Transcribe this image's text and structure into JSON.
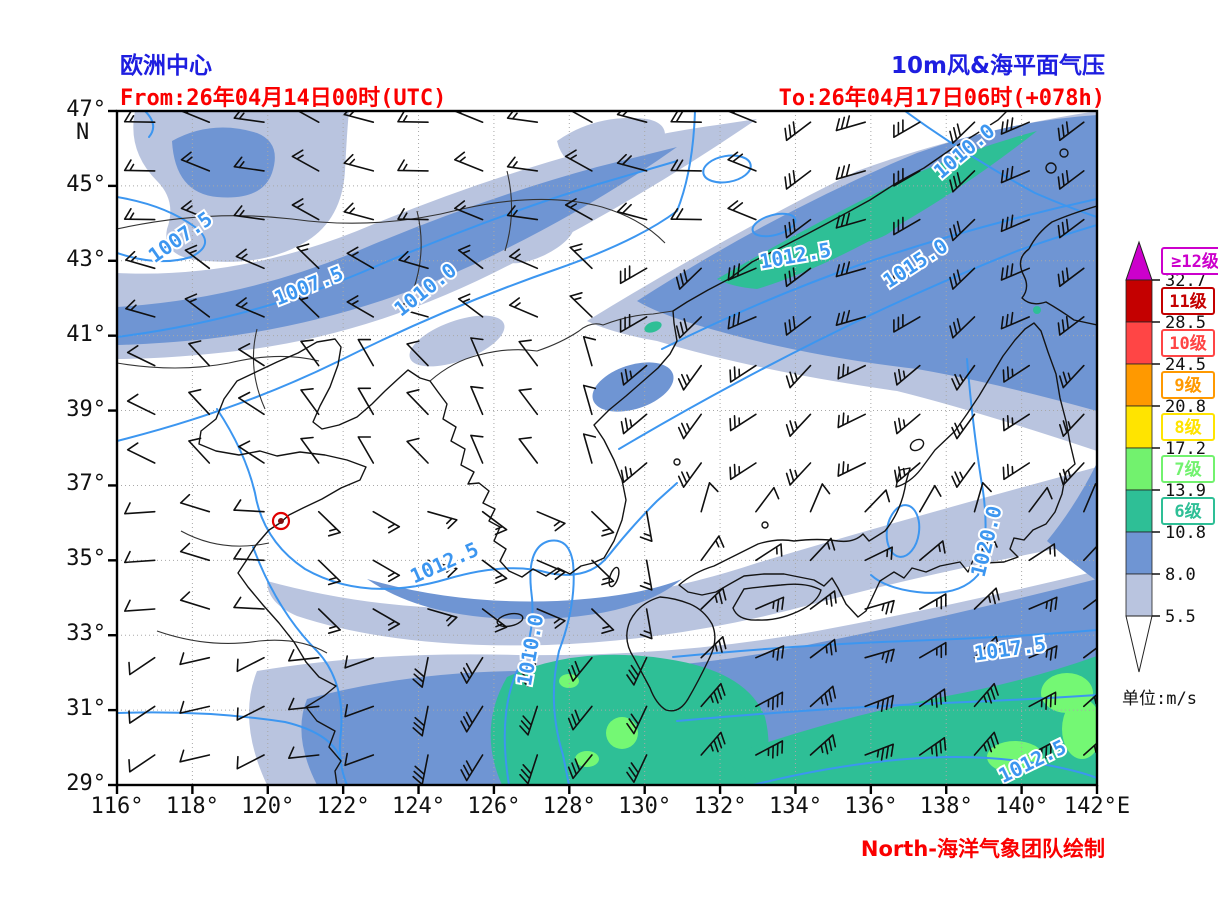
{
  "header": {
    "model": "欧洲中心",
    "product": "10m风&海平面气压",
    "from": "From:26年04月14日00时(UTC)",
    "to": "To:26年04月17日06时(+078h)"
  },
  "credit": "North-海洋气象团队绘制",
  "colors": {
    "title_blue": "#1e1ee0",
    "warn_red": "#fa0000",
    "contour_blue": "#3c96f0",
    "grid_gray": "#a8a8a8",
    "coast_black": "#141414",
    "marker_red": "#e00000",
    "fill_light_blue": "#b9c4df",
    "fill_blue": "#6f95d3",
    "fill_teal": "#2ebf96",
    "fill_light_green": "#74f874"
  },
  "map": {
    "lon_min": 116,
    "lon_max": 142,
    "lat_min": 29,
    "lat_max": 47,
    "lat_ticks": [
      47,
      45,
      43,
      41,
      39,
      37,
      35,
      33,
      31,
      29
    ],
    "lon_ticks": [
      116,
      118,
      120,
      122,
      124,
      126,
      128,
      130,
      132,
      134,
      136,
      138,
      140,
      142
    ],
    "deg_suffix": "°",
    "lat_hemisphere": "N",
    "lon_hemisphere": "E",
    "grid_step_deg": 2
  },
  "contour_labels": [
    {
      "text": "1007.5",
      "lon": 117.7,
      "lat": 43.6,
      "rot": -35
    },
    {
      "text": "1007.5",
      "lon": 121.1,
      "lat": 42.3,
      "rot": -22
    },
    {
      "text": "1010.0",
      "lon": 124.2,
      "lat": 42.2,
      "rot": -38
    },
    {
      "text": "1010.0",
      "lon": 138.5,
      "lat": 45.9,
      "rot": -40
    },
    {
      "text": "1012.5",
      "lon": 134.0,
      "lat": 43.1,
      "rot": -10
    },
    {
      "text": "1015.0",
      "lon": 137.2,
      "lat": 42.9,
      "rot": -33
    },
    {
      "text": "1012.5",
      "lon": 124.7,
      "lat": 34.9,
      "rot": -24
    },
    {
      "text": "1010.0",
      "lon": 127.0,
      "lat": 32.6,
      "rot": -80
    },
    {
      "text": "1020.0",
      "lon": 139.1,
      "lat": 35.5,
      "rot": -76
    },
    {
      "text": "1017.5",
      "lon": 139.7,
      "lat": 32.6,
      "rot": -8
    },
    {
      "text": "1012.5",
      "lon": 140.3,
      "lat": 29.6,
      "rot": -26
    }
  ],
  "marker": {
    "lon": 120.35,
    "lat": 36.05
  },
  "legend": {
    "unit": "单位:m/s",
    "grades": [
      {
        "label": "≥12级",
        "color": "#cc00cc"
      },
      {
        "label": "11级",
        "color": "#c40000"
      },
      {
        "label": "10级",
        "color": "#ff4545"
      },
      {
        "label": "9级",
        "color": "#ff9900"
      },
      {
        "label": "8级",
        "color": "#ffe400"
      },
      {
        "label": "7级",
        "color": "#72f26e"
      },
      {
        "label": "6级",
        "color": "#2ebf96"
      },
      {
        "label": null,
        "color": "#6f95d3"
      },
      {
        "label": null,
        "color": "#b9c4df"
      }
    ],
    "boundaries": [
      "32.7",
      "28.5",
      "24.5",
      "20.8",
      "17.2",
      "13.9",
      "10.8",
      "8.0",
      "5.5"
    ]
  },
  "wind_field": {
    "barb_unit_ms": {
      "full": 4,
      "half": 2
    },
    "grid": {
      "lon_start": 117.0,
      "lon_step": 1.45,
      "lon_count": 18,
      "lat_start": 29.8,
      "lat_step": 1.3,
      "lat_count": 14
    },
    "regions": [
      {
        "lon": [
          128.8,
          133
        ],
        "lat": [
          44,
          47
        ],
        "dir": 285,
        "spd": 8
      },
      {
        "lon": [
          128.8,
          142
        ],
        "lat": [
          40.3,
          47
        ],
        "dir": 240,
        "spd": 13
      },
      {
        "lon": [
          128.8,
          142
        ],
        "lat": [
          37.3,
          40.3
        ],
        "dir": 230,
        "spd": 10
      },
      {
        "lon": [
          116,
          128.8
        ],
        "lat": [
          43.2,
          47
        ],
        "dir": 285,
        "spd": 7
      },
      {
        "lon": [
          116,
          128.8
        ],
        "lat": [
          40.3,
          43.2
        ],
        "dir": 300,
        "spd": 6
      },
      {
        "lon": [
          122,
          128.8
        ],
        "lat": [
          37,
          40.3
        ],
        "dir": 330,
        "spd": 5
      },
      {
        "lon": [
          116,
          122
        ],
        "lat": [
          36.5,
          40.3
        ],
        "dir": 310,
        "spd": 4
      },
      {
        "lon": [
          130.5,
          142
        ],
        "lat": [
          29,
          31.8
        ],
        "dir": 55,
        "spd": 14
      },
      {
        "lon": [
          130.5,
          142
        ],
        "lat": [
          31.8,
          33.8
        ],
        "dir": 60,
        "spd": 11
      },
      {
        "lon": [
          131,
          142
        ],
        "lat": [
          33.8,
          35.2
        ],
        "dir": 50,
        "spd": 7
      },
      {
        "lon": [
          130.5,
          142
        ],
        "lat": [
          35.2,
          37.3
        ],
        "dir": 30,
        "spd": 4
      },
      {
        "lon": [
          124,
          130.5
        ],
        "lat": [
          29,
          33.6
        ],
        "dir": 205,
        "spd": 12
      },
      {
        "lon": [
          120.5,
          128.8
        ],
        "lat": [
          33.6,
          36.5
        ],
        "dir": 120,
        "spd": 6
      },
      {
        "lon": [
          124,
          130.5
        ],
        "lat": [
          33.6,
          37.3
        ],
        "dir": 170,
        "spd": 6
      },
      {
        "lon": [
          116,
          120.5
        ],
        "lat": [
          33.6,
          36.5
        ],
        "dir": 280,
        "spd": 4
      },
      {
        "lon": [
          116,
          124
        ],
        "lat": [
          29,
          33.6
        ],
        "dir": 250,
        "spd": 4
      },
      {
        "lon": [
          116,
          142
        ],
        "lat": [
          29,
          47
        ],
        "dir": 280,
        "spd": 5
      }
    ]
  }
}
